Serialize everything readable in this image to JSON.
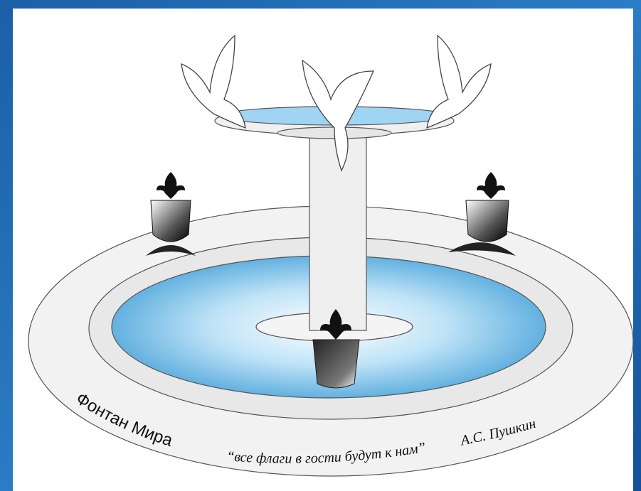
{
  "caption": {
    "title": "Фонтан Мира",
    "quote": "“все флаги в гости будут к нам”",
    "author": "А.С. Пушкин"
  }
}
